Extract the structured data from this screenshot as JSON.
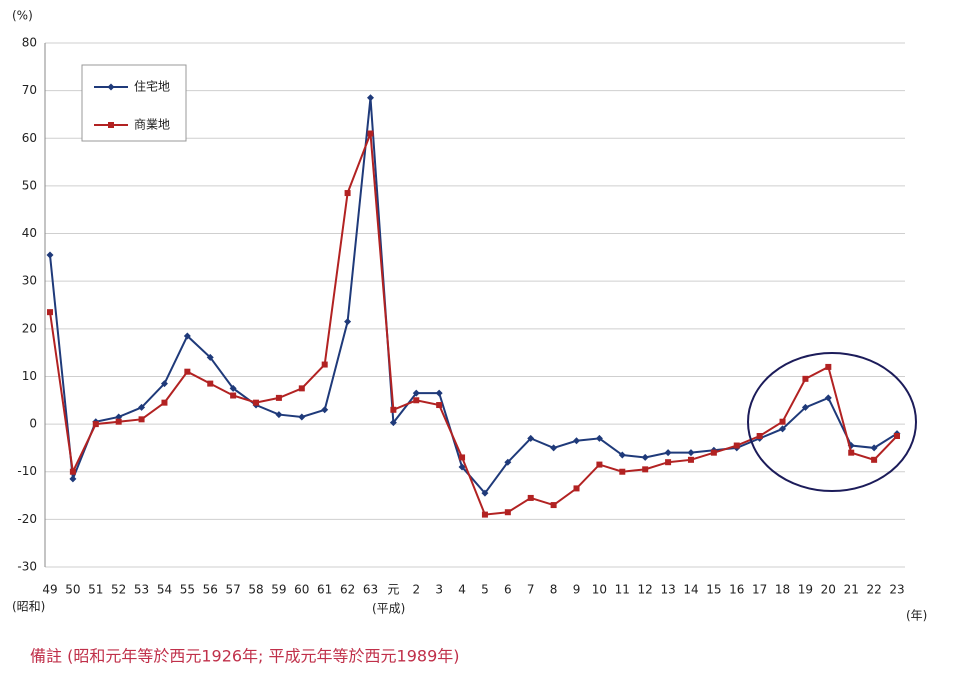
{
  "chart_data": {
    "type": "line",
    "y_label": "(%)",
    "x_label": "(年)",
    "annotations": [
      "(昭和)",
      "(平成)"
    ],
    "note": "備註 (昭和元年等於西元1926年; 平成元年等於西元1989年)",
    "categories": [
      "49",
      "50",
      "51",
      "52",
      "53",
      "54",
      "55",
      "56",
      "57",
      "58",
      "59",
      "60",
      "61",
      "62",
      "63",
      "元",
      "2",
      "3",
      "4",
      "5",
      "6",
      "7",
      "8",
      "9",
      "10",
      "11",
      "12",
      "13",
      "14",
      "15",
      "16",
      "17",
      "18",
      "19",
      "20",
      "21",
      "22",
      "23"
    ],
    "series": [
      {
        "name": "住宅地",
        "color": "#1f3a7a",
        "values": [
          35.5,
          -11.5,
          0.5,
          1.5,
          3.5,
          8.5,
          18.5,
          14,
          7.5,
          4,
          2,
          1.5,
          3,
          21.5,
          68.5,
          0.3,
          6.5,
          6.5,
          -9,
          -14.5,
          -8,
          -3,
          -5,
          -3.5,
          -3,
          -6.5,
          -7,
          -6,
          -6,
          -5.5,
          -5,
          -3,
          -1,
          3.5,
          5.5,
          -4.5,
          -5,
          -2
        ]
      },
      {
        "name": "商業地",
        "color": "#b22222",
        "values": [
          23.5,
          -10,
          0,
          0.5,
          1,
          4.5,
          11,
          8.5,
          6,
          4.5,
          5.5,
          7.5,
          12.5,
          48.5,
          61,
          3,
          5,
          4,
          -7,
          -19,
          -18.5,
          -15.5,
          -17,
          -13.5,
          -8.5,
          -10,
          -9.5,
          -8,
          -7.5,
          -6,
          -4.5,
          -2.5,
          0.5,
          9.5,
          12,
          -6,
          -7.5,
          -2.5
        ]
      }
    ],
    "ylim": [
      -30,
      80
    ],
    "yticks": [
      -30,
      -20,
      -10,
      0,
      10,
      20,
      30,
      40,
      50,
      60,
      70,
      80
    ],
    "grid": true
  }
}
